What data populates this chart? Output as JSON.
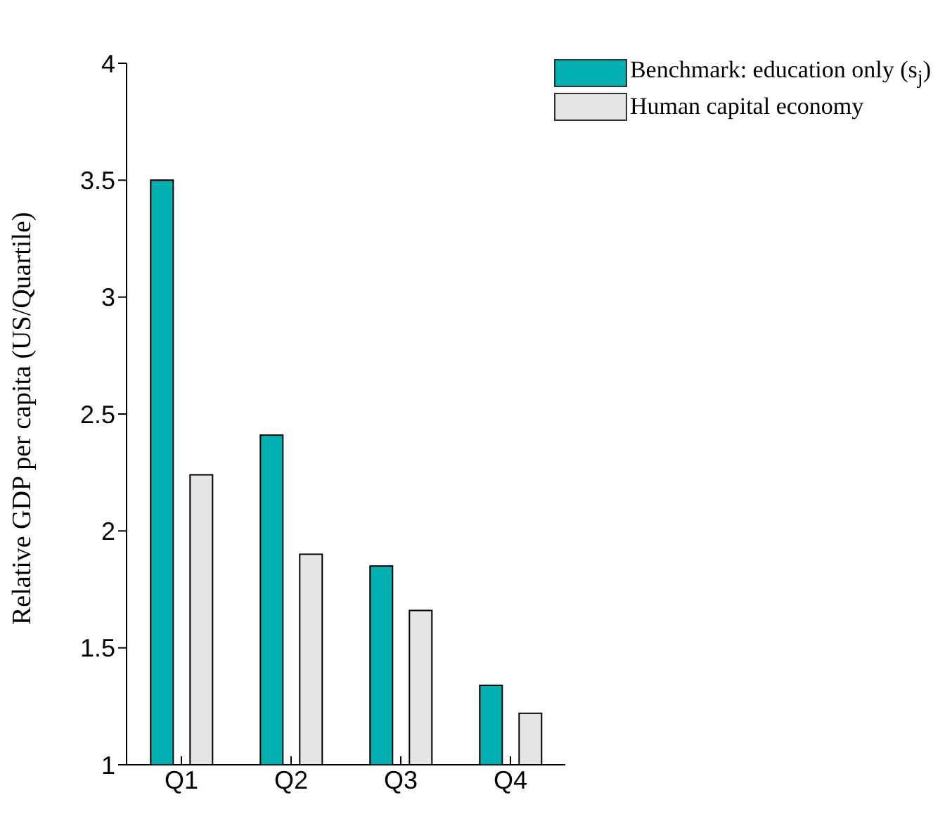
{
  "chart_data": {
    "type": "bar",
    "ylabel": "Relative GDP per capita (US/Quartile)",
    "categories": [
      "Q1",
      "Q2",
      "Q3",
      "Q4"
    ],
    "series": [
      {
        "name": "Benchmark: education only (s$_{j}$)",
        "color": "#00b0b0",
        "values": [
          3.5,
          2.41,
          1.85,
          1.34
        ]
      },
      {
        "name": "Human capital economy",
        "color": "#e5e5e5",
        "values": [
          2.24,
          1.9,
          1.66,
          1.22
        ]
      }
    ],
    "ylim": [
      1,
      4
    ],
    "yticks": [
      1,
      1.5,
      2,
      2.5,
      3,
      3.5,
      4
    ],
    "grid": false,
    "legend": "top right"
  }
}
